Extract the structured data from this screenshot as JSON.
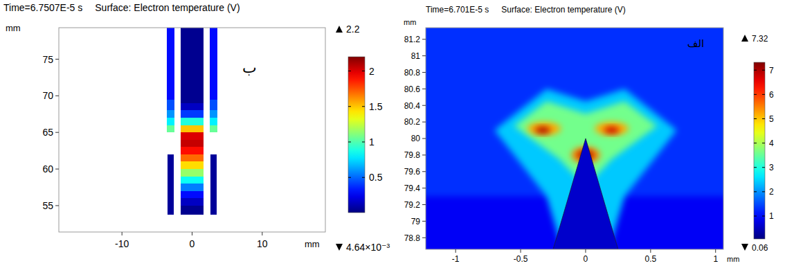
{
  "chart_data": [
    {
      "type": "heatmap",
      "time": "Time=6.7507E-5 s",
      "title": "Surface: Electron temperature (V)",
      "annotation": "ب",
      "xlabel": "mm",
      "ylabel": "mm",
      "xlim": [
        -19,
        19
      ],
      "ylim": [
        51.4,
        79.3
      ],
      "xticks": [
        -10,
        0,
        10
      ],
      "yticks": [
        55,
        60,
        65,
        70,
        75
      ],
      "colorbar": {
        "lim": [
          0.00464,
          2.2
        ],
        "ticks": [
          0.5,
          1,
          1.5,
          2
        ],
        "max": 2.2,
        "min": {
          "value": 0.00464,
          "label": "4.64×10⁻³"
        }
      },
      "regions": [
        {
          "shape": "rect",
          "x": [
            -3.5,
            -2.6
          ],
          "y": [
            53.8,
            62
          ],
          "value": 0.06
        },
        {
          "shape": "rect",
          "x": [
            2.6,
            3.5
          ],
          "y": [
            53.8,
            62
          ],
          "value": 0.06
        },
        {
          "shape": "rect",
          "x": [
            -3.6,
            -2.5
          ],
          "y": [
            65,
            79.3
          ],
          "value": 0.3
        },
        {
          "shape": "rect",
          "x": [
            2.5,
            3.6
          ],
          "y": [
            65,
            79.3
          ],
          "value": 0.3
        },
        {
          "shape": "rect",
          "x": [
            -3.6,
            -2.5
          ],
          "y": [
            65,
            66
          ],
          "value": 1.05
        },
        {
          "shape": "rect",
          "x": [
            -3.6,
            -2.5
          ],
          "y": [
            66,
            67
          ],
          "value": 0.8
        },
        {
          "shape": "rect",
          "x": [
            -3.6,
            -2.5
          ],
          "y": [
            67,
            68
          ],
          "value": 0.6
        },
        {
          "shape": "rect",
          "x": [
            -3.6,
            -2.5
          ],
          "y": [
            68,
            69.5
          ],
          "value": 0.45
        },
        {
          "shape": "rect",
          "x": [
            2.5,
            3.6
          ],
          "y": [
            65,
            66
          ],
          "value": 1.05
        },
        {
          "shape": "rect",
          "x": [
            2.5,
            3.6
          ],
          "y": [
            66,
            67
          ],
          "value": 0.8
        },
        {
          "shape": "rect",
          "x": [
            2.5,
            3.6
          ],
          "y": [
            67,
            68
          ],
          "value": 0.6
        },
        {
          "shape": "rect",
          "x": [
            2.5,
            3.6
          ],
          "y": [
            68,
            69.5
          ],
          "value": 0.45
        },
        {
          "shape": "rect",
          "x": [
            -1.6,
            1.6
          ],
          "y": [
            53.8,
            79.3
          ],
          "value": 0.04
        },
        {
          "shape": "rect",
          "x": [
            -1.6,
            1.6
          ],
          "y": [
            55,
            56
          ],
          "value": 0.15
        },
        {
          "shape": "rect",
          "x": [
            -1.6,
            1.6
          ],
          "y": [
            56,
            57
          ],
          "value": 0.3
        },
        {
          "shape": "rect",
          "x": [
            -1.6,
            1.6
          ],
          "y": [
            57,
            58
          ],
          "value": 0.55
        },
        {
          "shape": "rect",
          "x": [
            -1.6,
            1.6
          ],
          "y": [
            58,
            59
          ],
          "value": 0.85
        },
        {
          "shape": "rect",
          "x": [
            -1.6,
            1.6
          ],
          "y": [
            59,
            60
          ],
          "value": 1.15
        },
        {
          "shape": "rect",
          "x": [
            -1.6,
            1.6
          ],
          "y": [
            60,
            61
          ],
          "value": 1.45
        },
        {
          "shape": "rect",
          "x": [
            -1.6,
            1.6
          ],
          "y": [
            61,
            62
          ],
          "value": 1.7
        },
        {
          "shape": "rect",
          "x": [
            -1.6,
            1.6
          ],
          "y": [
            62,
            63
          ],
          "value": 1.9
        },
        {
          "shape": "rect",
          "x": [
            -1.6,
            1.6
          ],
          "y": [
            63,
            64
          ],
          "value": 2.05
        },
        {
          "shape": "rect",
          "x": [
            -1.6,
            1.6
          ],
          "y": [
            64,
            65
          ],
          "value": 2.0
        },
        {
          "shape": "rect",
          "x": [
            -1.6,
            1.6
          ],
          "y": [
            65,
            66
          ],
          "value": 1.5
        },
        {
          "shape": "rect",
          "x": [
            -1.6,
            1.6
          ],
          "y": [
            66,
            67
          ],
          "value": 0.9
        },
        {
          "shape": "rect",
          "x": [
            -1.6,
            1.6
          ],
          "y": [
            67,
            68
          ],
          "value": 0.4
        },
        {
          "shape": "rect",
          "x": [
            -1.6,
            1.6
          ],
          "y": [
            68,
            69
          ],
          "value": 0.15
        }
      ]
    },
    {
      "type": "heatmap",
      "time": "Time=6.701E-5 s",
      "title": "Surface: Electron temperature (V)",
      "annotation": "الف",
      "xlabel": "mm",
      "ylabel": "mm",
      "xlim": [
        -1.23,
        1.06
      ],
      "ylim": [
        78.66,
        81.34
      ],
      "xticks": [
        -1,
        -0.5,
        0,
        0.5,
        1
      ],
      "yticks": [
        78.8,
        79,
        79.2,
        79.4,
        79.6,
        79.8,
        80,
        80.2,
        80.4,
        80.6,
        80.8,
        81,
        81.2
      ],
      "colorbar": {
        "lim": [
          0.06,
          7.32
        ],
        "ticks": [
          1,
          2,
          3,
          4,
          5,
          6,
          7
        ],
        "max": 7.32,
        "min": 0.06
      },
      "regions": [
        {
          "shape": "rect",
          "x": [
            -1.23,
            1.06
          ],
          "y": [
            78.66,
            81.34
          ],
          "value": 1.3
        },
        {
          "shape": "polygon",
          "points": [
            [
              -1.5,
              78.4
            ],
            [
              1.3,
              78.4
            ],
            [
              1.3,
              79.3
            ],
            [
              -1.5,
              79.3
            ]
          ],
          "value": 0.9
        },
        {
          "shape": "polygon",
          "points": [
            [
              -0.7,
              80.1
            ],
            [
              -0.3,
              80.6
            ],
            [
              0,
              80.45
            ],
            [
              0.3,
              80.6
            ],
            [
              0.7,
              80.1
            ],
            [
              0.3,
              79.3
            ],
            [
              0.15,
              78.5
            ],
            [
              -0.15,
              78.5
            ],
            [
              -0.3,
              79.3
            ]
          ],
          "value": 2.4
        },
        {
          "shape": "polygon",
          "points": [
            [
              -0.55,
              80.15
            ],
            [
              -0.3,
              80.45
            ],
            [
              0,
              80.3
            ],
            [
              0.3,
              80.45
            ],
            [
              0.55,
              80.15
            ],
            [
              0.2,
              79.75
            ],
            [
              0.05,
              79.5
            ],
            [
              -0.05,
              79.5
            ],
            [
              -0.2,
              79.75
            ]
          ],
          "value": 3.6
        },
        {
          "shape": "ellipse",
          "cx": -0.32,
          "cy": 80.12,
          "rx": 0.13,
          "ry": 0.08,
          "value": 5.2
        },
        {
          "shape": "ellipse",
          "cx": 0.2,
          "cy": 80.12,
          "rx": 0.13,
          "ry": 0.08,
          "value": 5.2
        },
        {
          "shape": "ellipse",
          "cx": -0.33,
          "cy": 80.1,
          "rx": 0.06,
          "ry": 0.04,
          "value": 7.0
        },
        {
          "shape": "ellipse",
          "cx": 0.2,
          "cy": 80.1,
          "rx": 0.06,
          "ry": 0.04,
          "value": 6.8
        },
        {
          "shape": "ellipse",
          "cx": 0,
          "cy": 79.8,
          "rx": 0.11,
          "ry": 0.1,
          "value": 5.5
        },
        {
          "shape": "ellipse",
          "cx": 0,
          "cy": 79.8,
          "rx": 0.06,
          "ry": 0.05,
          "value": 7.2
        },
        {
          "shape": "polygon",
          "points": [
            [
              -0.25,
              78.66
            ],
            [
              0,
              80.0
            ],
            [
              0.25,
              78.66
            ]
          ],
          "value": 0.6
        }
      ]
    }
  ]
}
